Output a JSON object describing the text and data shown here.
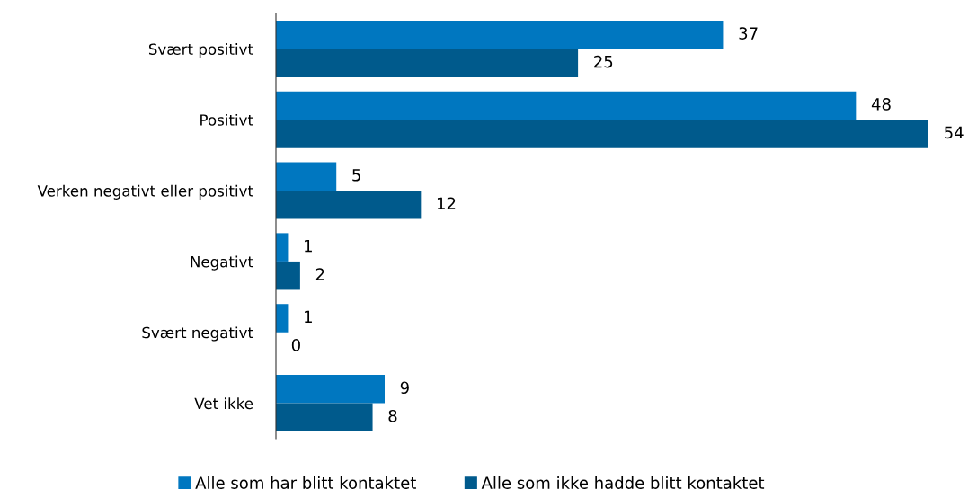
{
  "chart_data": {
    "type": "bar",
    "orientation": "horizontal",
    "categories": [
      "Svært positivt",
      "Positivt",
      "Verken negativt eller positivt",
      "Negativt",
      "Svært negativt",
      "Vet ikke"
    ],
    "series": [
      {
        "name": "Alle som har blitt kontaktet",
        "color": "#0077c0",
        "values": [
          37,
          48,
          5,
          1,
          1,
          9
        ]
      },
      {
        "name": "Alle som ikke hadde blitt kontaktet",
        "color": "#005a8c",
        "values": [
          25,
          54,
          12,
          2,
          0,
          8
        ]
      }
    ],
    "data_labels": true,
    "legend": "bottom",
    "grid": false
  }
}
